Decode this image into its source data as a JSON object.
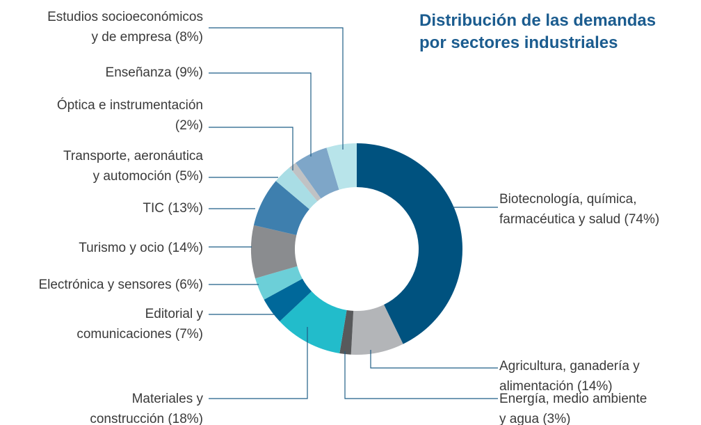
{
  "chart_data": {
    "type": "donut",
    "title": "Distribución de las demandas\npor sectores industriales",
    "categories": [
      "Biotecnología, química,\nfarmacéutica y salud",
      "Agricultura, ganadería y\nalimentación",
      "Energía, medio ambiente\ny agua",
      "Materiales y\nconstrucción",
      "Editorial y\ncomunicaciones",
      "Electrónica y sensores",
      "Turismo y ocio",
      "TIC",
      "Transporte, aeronáutica\ny automoción",
      "Óptica e instrumentación",
      "Enseñanza",
      "Estudios socioeconómicos\ny de empresa"
    ],
    "values": [
      74,
      14,
      3,
      18,
      7,
      6,
      14,
      13,
      5,
      2,
      9,
      8
    ],
    "value_labels": [
      "(74%)",
      "(14%)",
      "(3%)",
      "(18%)",
      "(7%)",
      "(6%)",
      "(14%)",
      "(13%)",
      "(5%)",
      "(2%)",
      "(9%)",
      "(8%)"
    ],
    "colors": [
      "#00527f",
      "#b3b5b8",
      "#58595b",
      "#22bccb",
      "#00689a",
      "#6ccfd8",
      "#8a8c8f",
      "#3e7fae",
      "#a9dde5",
      "#c0c2c4",
      "#7ea6c8",
      "#b8e4ea"
    ]
  }
}
